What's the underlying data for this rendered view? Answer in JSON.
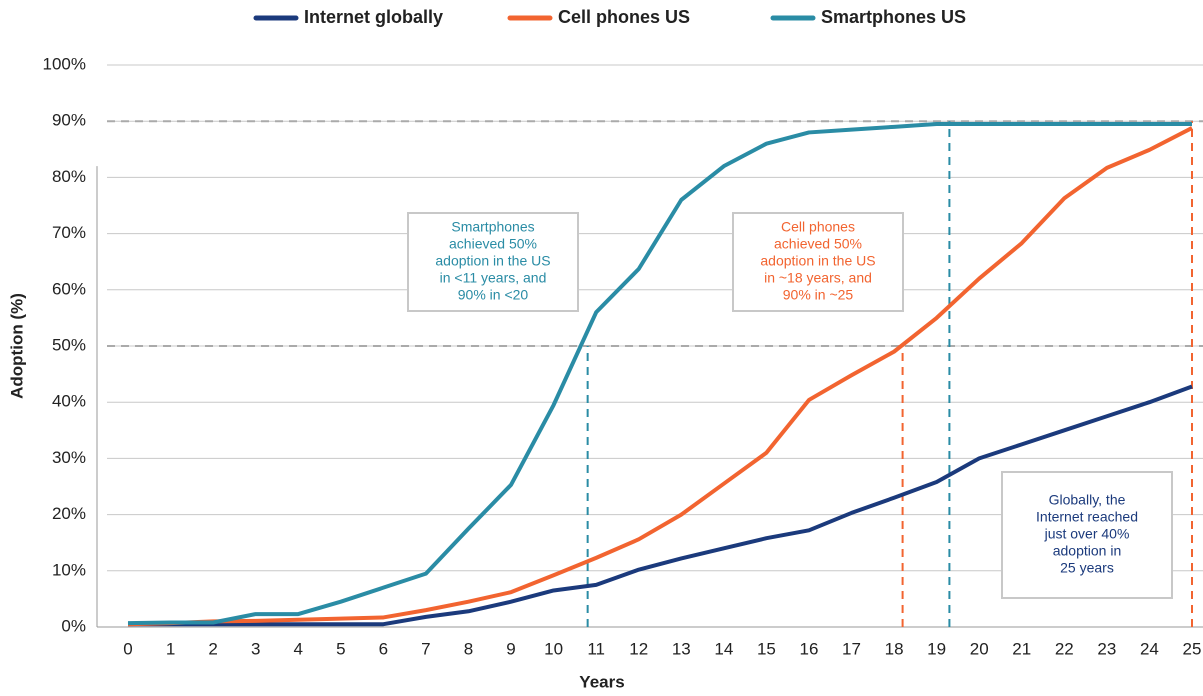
{
  "chart_data": {
    "type": "line",
    "xlabel": "Years",
    "ylabel": "Adoption (%)",
    "x": [
      0,
      1,
      2,
      3,
      4,
      5,
      6,
      7,
      8,
      9,
      10,
      11,
      12,
      13,
      14,
      15,
      16,
      17,
      18,
      19,
      20,
      21,
      22,
      23,
      24,
      25
    ],
    "series": [
      {
        "name": "Internet globally",
        "color": "#1b3a7c",
        "values": [
          0.5,
          0.5,
          0.5,
          0.5,
          0.5,
          0.5,
          0.5,
          1.8,
          2.8,
          4.5,
          6.5,
          7.5,
          10.2,
          12.2,
          14,
          15.8,
          17.2,
          20.3,
          23,
          25.8,
          30,
          32.5,
          35,
          37.5,
          40,
          42.8
        ]
      },
      {
        "name": "Cell phones US",
        "color": "#f26430",
        "values": [
          0.5,
          0.7,
          1,
          1.1,
          1.3,
          1.5,
          1.7,
          3,
          4.5,
          6.2,
          9.2,
          12.3,
          15.6,
          20,
          25.5,
          31,
          40.4,
          44.8,
          49,
          55,
          62,
          68.3,
          76.3,
          81.7,
          84.9,
          88.8
        ]
      },
      {
        "name": "Smartphones US",
        "color": "#2a8ca5",
        "values": [
          0.7,
          0.8,
          0.8,
          2.3,
          2.3,
          4.5,
          7,
          9.5,
          17.5,
          25.3,
          39.5,
          56,
          63.7,
          76,
          82,
          86,
          88,
          88.5,
          89,
          89.5,
          89.5,
          89.5,
          89.5,
          89.5,
          89.5,
          89.5
        ]
      }
    ],
    "xlim": [
      0,
      25
    ],
    "xticks": [
      0,
      1,
      2,
      3,
      4,
      5,
      6,
      7,
      8,
      9,
      10,
      11,
      12,
      13,
      14,
      15,
      16,
      17,
      18,
      19,
      20,
      21,
      22,
      23,
      24,
      25
    ],
    "ylim": [
      0,
      100
    ],
    "yticks": [
      {
        "value": 0,
        "label": "0%"
      },
      {
        "value": 10,
        "label": "10%"
      },
      {
        "value": 20,
        "label": "20%"
      },
      {
        "value": 30,
        "label": "30%"
      },
      {
        "value": 40,
        "label": "40%"
      },
      {
        "value": 50,
        "label": "50%"
      },
      {
        "value": 60,
        "label": "60%"
      },
      {
        "value": 70,
        "label": "70%"
      },
      {
        "value": 80,
        "label": "80%"
      },
      {
        "value": 90,
        "label": "90%"
      },
      {
        "value": 100,
        "label": "100%"
      }
    ],
    "grid": true,
    "legend": "top",
    "reference_lines": [
      {
        "y": 90,
        "color": "#aaaaaa"
      },
      {
        "y": 50,
        "color": "#aaaaaa"
      },
      {
        "x": 10.8,
        "y": 50,
        "color": "#2a8ca5"
      },
      {
        "x": 18.2,
        "y": 50,
        "color": "#f26430"
      },
      {
        "x": 19.3,
        "y": 90,
        "color": "#2a8ca5"
      },
      {
        "x": 25,
        "y": 90,
        "color": "#f26430"
      }
    ],
    "annotations": [
      {
        "lines": [
          "Smartphones",
          "achieved 50%",
          "adoption in the US",
          "in <11 years, and",
          "90% in <20"
        ],
        "color": "#2a8ca5"
      },
      {
        "lines": [
          "Cell phones",
          "achieved 50%",
          "adoption in the US",
          "in ~18 years, and",
          "90% in ~25"
        ],
        "color": "#f26430"
      },
      {
        "lines": [
          "Globally, the",
          "Internet reached",
          "just over 40%",
          "adoption in",
          "25 years"
        ],
        "color": "#1b3a7c"
      }
    ]
  }
}
